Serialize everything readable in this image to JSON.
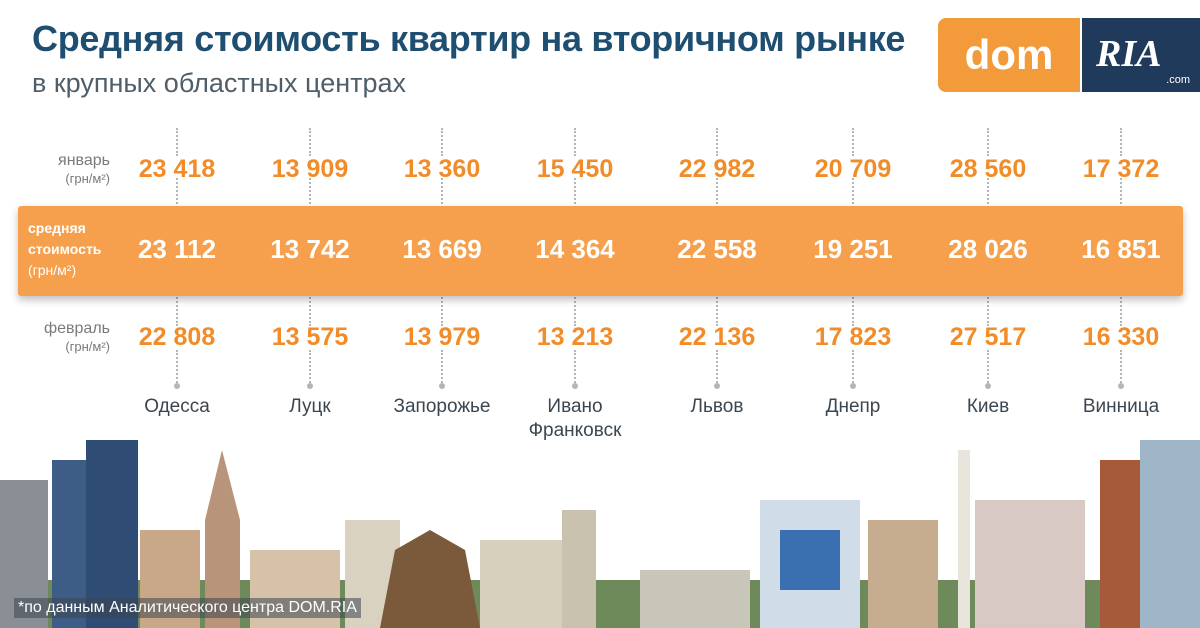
{
  "title": "Средняя стоимость квартир на вторичном рынке",
  "subtitle": "в крупных областных центрах",
  "logo": {
    "dom": "dom",
    "ria": "RIA",
    "com": ".com"
  },
  "rows": {
    "january": {
      "label": "январь",
      "unit": "(грн/м²)"
    },
    "average": {
      "label_line1": "средняя",
      "label_line2": "стоимость",
      "unit": "(грн/м²)"
    },
    "february": {
      "label": "февраль",
      "unit": "(грн/м²)"
    }
  },
  "footnote": "*по данным Аналитического центра DOM.RIA",
  "colors": {
    "accent": "#f39a3a",
    "title": "#1e4f70",
    "value": "#f28c28"
  },
  "chart_data": {
    "type": "table",
    "title": "Средняя стоимость квартир на вторичном рынке",
    "subtitle": "в крупных областных центрах",
    "unit": "грн/м²",
    "categories": [
      "Одесса",
      "Луцк",
      "Запорожье",
      "Ивано Франковск",
      "Львов",
      "Днепр",
      "Киев",
      "Винница"
    ],
    "city_lines": [
      [
        "Одесса"
      ],
      [
        "Луцк"
      ],
      [
        "Запорожье"
      ],
      [
        "Ивано",
        "Франковск"
      ],
      [
        "Львов"
      ],
      [
        "Днепр"
      ],
      [
        "Киев"
      ],
      [
        "Винница"
      ]
    ],
    "series": [
      {
        "name": "январь",
        "values": [
          23418,
          13909,
          13360,
          15450,
          22982,
          20709,
          28560,
          17372
        ]
      },
      {
        "name": "средняя стоимость",
        "values": [
          23112,
          13742,
          13669,
          14364,
          22558,
          19251,
          28026,
          16851
        ]
      },
      {
        "name": "февраль",
        "values": [
          22808,
          13575,
          13979,
          13213,
          22136,
          17823,
          27517,
          16330
        ]
      }
    ]
  }
}
